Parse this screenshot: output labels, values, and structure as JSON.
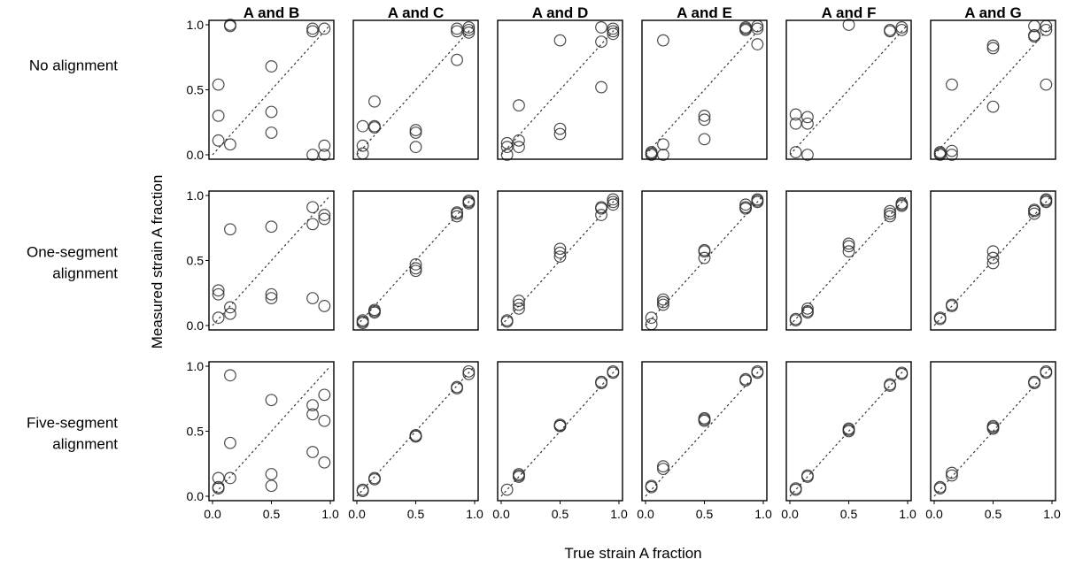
{
  "chart_data": {
    "type": "scatter",
    "xlabel": "True strain A fraction",
    "ylabel": "Measured strain A fraction",
    "xlim": [
      0,
      1
    ],
    "ylim": [
      0,
      1
    ],
    "x_ticks": [
      "0.0",
      "0.5",
      "1.0"
    ],
    "y_ticks": [
      "0.0",
      "0.5",
      "1.0"
    ],
    "reference_line": "y = x (dotted)",
    "columns": [
      "A and B",
      "A and C",
      "A and D",
      "A and E",
      "A and F",
      "A and G"
    ],
    "rows": [
      "No alignment",
      "One-segment alignment",
      "Five-segment alignment"
    ],
    "panels": [
      [
        [
          [
            0.15,
            0.99
          ],
          [
            0.15,
            1.0
          ],
          [
            0.05,
            0.54
          ],
          [
            0.05,
            0.3
          ],
          [
            0.05,
            0.11
          ],
          [
            0.15,
            0.08
          ],
          [
            0.5,
            0.68
          ],
          [
            0.5,
            0.33
          ],
          [
            0.5,
            0.17
          ],
          [
            0.85,
            0.97
          ],
          [
            0.85,
            0.95
          ],
          [
            0.95,
            0.97
          ],
          [
            0.95,
            0.07
          ],
          [
            0.95,
            0.0
          ],
          [
            0.85,
            0.0
          ]
        ],
        [
          [
            0.05,
            0.22
          ],
          [
            0.05,
            0.07
          ],
          [
            0.05,
            0.01
          ],
          [
            0.15,
            0.41
          ],
          [
            0.15,
            0.22
          ],
          [
            0.15,
            0.21
          ],
          [
            0.5,
            0.19
          ],
          [
            0.5,
            0.17
          ],
          [
            0.5,
            0.06
          ],
          [
            0.85,
            0.97
          ],
          [
            0.85,
            0.95
          ],
          [
            0.85,
            0.73
          ],
          [
            0.95,
            0.98
          ],
          [
            0.95,
            0.96
          ],
          [
            0.95,
            0.94
          ]
        ],
        [
          [
            0.05,
            0.09
          ],
          [
            0.05,
            0.06
          ],
          [
            0.05,
            0.0
          ],
          [
            0.15,
            0.38
          ],
          [
            0.15,
            0.11
          ],
          [
            0.15,
            0.06
          ],
          [
            0.5,
            0.88
          ],
          [
            0.5,
            0.2
          ],
          [
            0.5,
            0.16
          ],
          [
            0.85,
            0.98
          ],
          [
            0.85,
            0.87
          ],
          [
            0.85,
            0.52
          ],
          [
            0.95,
            0.97
          ],
          [
            0.95,
            0.95
          ],
          [
            0.95,
            0.93
          ]
        ],
        [
          [
            0.05,
            0.02
          ],
          [
            0.05,
            0.01
          ],
          [
            0.05,
            0.0
          ],
          [
            0.15,
            0.88
          ],
          [
            0.15,
            0.08
          ],
          [
            0.15,
            0.0
          ],
          [
            0.5,
            0.3
          ],
          [
            0.5,
            0.27
          ],
          [
            0.5,
            0.12
          ],
          [
            0.85,
            0.98
          ],
          [
            0.85,
            0.97
          ],
          [
            0.85,
            0.96
          ],
          [
            0.95,
            0.99
          ],
          [
            0.95,
            0.97
          ],
          [
            0.95,
            0.85
          ]
        ],
        [
          [
            0.05,
            0.31
          ],
          [
            0.05,
            0.24
          ],
          [
            0.05,
            0.02
          ],
          [
            0.15,
            0.29
          ],
          [
            0.15,
            0.24
          ],
          [
            0.15,
            0.0
          ],
          [
            0.5,
            1.0
          ],
          [
            0.85,
            0.96
          ],
          [
            0.85,
            0.95
          ],
          [
            0.95,
            0.98
          ],
          [
            0.95,
            0.96
          ]
        ],
        [
          [
            0.05,
            0.02
          ],
          [
            0.05,
            0.01
          ],
          [
            0.05,
            0.0
          ],
          [
            0.15,
            0.54
          ],
          [
            0.15,
            0.03
          ],
          [
            0.15,
            0.0
          ],
          [
            0.5,
            0.84
          ],
          [
            0.5,
            0.82
          ],
          [
            0.5,
            0.37
          ],
          [
            0.85,
            0.99
          ],
          [
            0.85,
            0.92
          ],
          [
            0.85,
            0.91
          ],
          [
            0.95,
            0.99
          ],
          [
            0.95,
            0.96
          ],
          [
            0.95,
            0.54
          ]
        ]
      ],
      [
        [
          [
            0.05,
            0.27
          ],
          [
            0.05,
            0.24
          ],
          [
            0.05,
            0.06
          ],
          [
            0.15,
            0.74
          ],
          [
            0.15,
            0.14
          ],
          [
            0.15,
            0.09
          ],
          [
            0.5,
            0.76
          ],
          [
            0.5,
            0.24
          ],
          [
            0.5,
            0.21
          ],
          [
            0.85,
            0.91
          ],
          [
            0.85,
            0.78
          ],
          [
            0.85,
            0.21
          ],
          [
            0.95,
            0.85
          ],
          [
            0.95,
            0.82
          ],
          [
            0.95,
            0.15
          ]
        ],
        [
          [
            0.05,
            0.04
          ],
          [
            0.05,
            0.03
          ],
          [
            0.05,
            0.02
          ],
          [
            0.15,
            0.12
          ],
          [
            0.15,
            0.11
          ],
          [
            0.15,
            0.1
          ],
          [
            0.5,
            0.47
          ],
          [
            0.5,
            0.44
          ],
          [
            0.5,
            0.42
          ],
          [
            0.85,
            0.87
          ],
          [
            0.85,
            0.86
          ],
          [
            0.85,
            0.84
          ],
          [
            0.95,
            0.96
          ],
          [
            0.95,
            0.95
          ],
          [
            0.95,
            0.94
          ]
        ],
        [
          [
            0.05,
            0.04
          ],
          [
            0.05,
            0.03
          ],
          [
            0.15,
            0.19
          ],
          [
            0.15,
            0.16
          ],
          [
            0.15,
            0.13
          ],
          [
            0.5,
            0.59
          ],
          [
            0.5,
            0.56
          ],
          [
            0.5,
            0.53
          ],
          [
            0.85,
            0.91
          ],
          [
            0.85,
            0.9
          ],
          [
            0.85,
            0.85
          ],
          [
            0.95,
            0.97
          ],
          [
            0.95,
            0.95
          ],
          [
            0.95,
            0.93
          ]
        ],
        [
          [
            0.05,
            0.06
          ],
          [
            0.05,
            0.01
          ],
          [
            0.15,
            0.2
          ],
          [
            0.15,
            0.18
          ],
          [
            0.15,
            0.16
          ],
          [
            0.5,
            0.58
          ],
          [
            0.5,
            0.57
          ],
          [
            0.5,
            0.52
          ],
          [
            0.85,
            0.93
          ],
          [
            0.85,
            0.91
          ],
          [
            0.85,
            0.9
          ],
          [
            0.95,
            0.97
          ],
          [
            0.95,
            0.96
          ],
          [
            0.95,
            0.95
          ]
        ],
        [
          [
            0.05,
            0.05
          ],
          [
            0.05,
            0.04
          ],
          [
            0.15,
            0.13
          ],
          [
            0.15,
            0.11
          ],
          [
            0.15,
            0.1
          ],
          [
            0.5,
            0.63
          ],
          [
            0.5,
            0.61
          ],
          [
            0.5,
            0.57
          ],
          [
            0.85,
            0.88
          ],
          [
            0.85,
            0.86
          ],
          [
            0.85,
            0.84
          ],
          [
            0.95,
            0.94
          ],
          [
            0.95,
            0.93
          ],
          [
            0.95,
            0.92
          ]
        ],
        [
          [
            0.05,
            0.06
          ],
          [
            0.05,
            0.05
          ],
          [
            0.15,
            0.16
          ],
          [
            0.15,
            0.15
          ],
          [
            0.5,
            0.57
          ],
          [
            0.5,
            0.52
          ],
          [
            0.5,
            0.48
          ],
          [
            0.85,
            0.89
          ],
          [
            0.85,
            0.88
          ],
          [
            0.85,
            0.86
          ],
          [
            0.95,
            0.97
          ],
          [
            0.95,
            0.96
          ],
          [
            0.95,
            0.95
          ]
        ]
      ],
      [
        [
          [
            0.05,
            0.14
          ],
          [
            0.05,
            0.07
          ],
          [
            0.05,
            0.06
          ],
          [
            0.15,
            0.93
          ],
          [
            0.15,
            0.41
          ],
          [
            0.15,
            0.14
          ],
          [
            0.5,
            0.74
          ],
          [
            0.5,
            0.17
          ],
          [
            0.5,
            0.08
          ],
          [
            0.85,
            0.7
          ],
          [
            0.85,
            0.63
          ],
          [
            0.85,
            0.34
          ],
          [
            0.95,
            0.78
          ],
          [
            0.95,
            0.58
          ],
          [
            0.95,
            0.26
          ]
        ],
        [
          [
            0.05,
            0.05
          ],
          [
            0.05,
            0.04
          ],
          [
            0.15,
            0.14
          ],
          [
            0.15,
            0.13
          ],
          [
            0.5,
            0.47
          ],
          [
            0.5,
            0.46
          ],
          [
            0.5,
            0.46
          ],
          [
            0.85,
            0.84
          ],
          [
            0.85,
            0.83
          ],
          [
            0.95,
            0.96
          ],
          [
            0.95,
            0.94
          ]
        ],
        [
          [
            0.05,
            0.05
          ],
          [
            0.15,
            0.17
          ],
          [
            0.15,
            0.16
          ],
          [
            0.15,
            0.15
          ],
          [
            0.5,
            0.55
          ],
          [
            0.5,
            0.54
          ],
          [
            0.5,
            0.54
          ],
          [
            0.85,
            0.88
          ],
          [
            0.85,
            0.87
          ],
          [
            0.95,
            0.96
          ],
          [
            0.95,
            0.95
          ]
        ],
        [
          [
            0.05,
            0.08
          ],
          [
            0.05,
            0.07
          ],
          [
            0.15,
            0.23
          ],
          [
            0.15,
            0.21
          ],
          [
            0.5,
            0.6
          ],
          [
            0.5,
            0.59
          ],
          [
            0.5,
            0.58
          ],
          [
            0.85,
            0.9
          ],
          [
            0.85,
            0.89
          ],
          [
            0.95,
            0.96
          ],
          [
            0.95,
            0.95
          ]
        ],
        [
          [
            0.05,
            0.06
          ],
          [
            0.05,
            0.05
          ],
          [
            0.15,
            0.16
          ],
          [
            0.15,
            0.15
          ],
          [
            0.5,
            0.52
          ],
          [
            0.5,
            0.51
          ],
          [
            0.5,
            0.5
          ],
          [
            0.85,
            0.86
          ],
          [
            0.85,
            0.85
          ],
          [
            0.95,
            0.95
          ],
          [
            0.95,
            0.94
          ]
        ],
        [
          [
            0.05,
            0.07
          ],
          [
            0.05,
            0.06
          ],
          [
            0.15,
            0.18
          ],
          [
            0.15,
            0.16
          ],
          [
            0.5,
            0.54
          ],
          [
            0.5,
            0.53
          ],
          [
            0.5,
            0.52
          ],
          [
            0.85,
            0.88
          ],
          [
            0.85,
            0.87
          ],
          [
            0.95,
            0.96
          ],
          [
            0.95,
            0.95
          ]
        ]
      ]
    ]
  }
}
